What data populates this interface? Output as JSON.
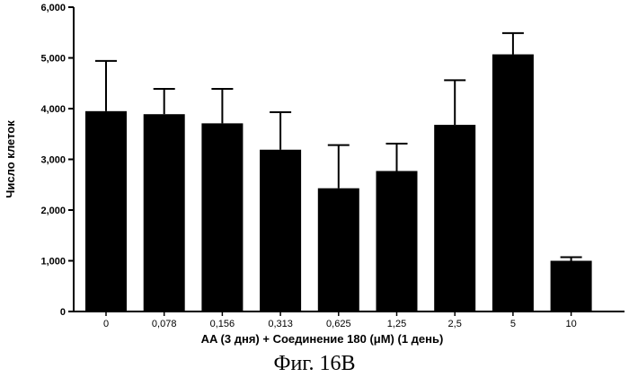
{
  "chart_data": {
    "type": "bar",
    "categories": [
      "0",
      "0,078",
      "0,156",
      "0,313",
      "0,625",
      "1,25",
      "2,5",
      "5",
      "10"
    ],
    "values": [
      3950,
      3890,
      3710,
      3190,
      2430,
      2770,
      3680,
      5070,
      1000
    ],
    "errors": [
      990,
      500,
      680,
      740,
      850,
      540,
      880,
      420,
      70
    ],
    "ylim": [
      0,
      6000
    ],
    "yticks": [
      0,
      1000,
      2000,
      3000,
      4000,
      5000,
      6000
    ],
    "ytick_labels": [
      "0",
      "1,000",
      "2,000",
      "3,000",
      "4,000",
      "5,000",
      "6,000"
    ],
    "xlabel": "AA (3 дня)  + Соединение 180 (μM) (1 день)",
    "ylabel": "Число клеток",
    "bar_color": "#000000"
  },
  "caption": "Фиг. 16B"
}
